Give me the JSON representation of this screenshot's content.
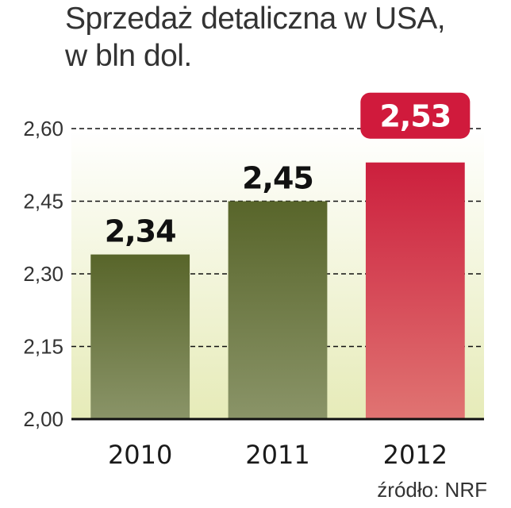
{
  "title_lines": [
    "Sprzedaż detaliczna w USA,",
    "w bln dol."
  ],
  "source": "źródło: NRF",
  "colors": {
    "bar_dark_top": "#58652a",
    "bar_dark_bottom": "#8a9468",
    "bar_hl_top": "#cc1f3d",
    "bar_hl_bottom": "#e07472",
    "badge": "#d01a3c",
    "plot_bg_top": "#ffffff",
    "plot_bg_bottom": "#e6ebb8"
  },
  "chart_data": {
    "type": "bar",
    "title": "Sprzedaż detaliczna w USA, w bln dol.",
    "xlabel": "",
    "ylabel": "",
    "categories": [
      "2010",
      "2011",
      "2012"
    ],
    "values": [
      2.34,
      2.45,
      2.53
    ],
    "value_labels": [
      "2,34",
      "2,45",
      "2,53"
    ],
    "highlight_index": 2,
    "ylim": [
      2.0,
      2.6
    ],
    "yticks": [
      2.0,
      2.15,
      2.3,
      2.45,
      2.6
    ],
    "ytick_labels": [
      "2,00",
      "2,15",
      "2,30",
      "2,45",
      "2,60"
    ],
    "grid": true
  }
}
